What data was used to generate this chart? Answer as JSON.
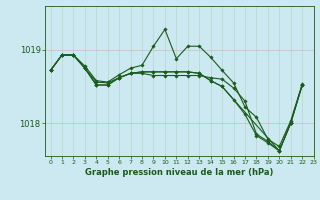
{
  "title": "Graphe pression niveau de la mer (hPa)",
  "bg_color": "#cce8f0",
  "grid_color_v": "#b8cccc",
  "grid_color_h": "#ccaaaa",
  "line_color": "#1a5c1a",
  "xlim": [
    -0.5,
    23
  ],
  "ylim": [
    1017.55,
    1019.6
  ],
  "yticks": [
    1018,
    1019
  ],
  "xticks": [
    0,
    1,
    2,
    3,
    4,
    5,
    6,
    7,
    8,
    9,
    10,
    11,
    12,
    13,
    14,
    15,
    16,
    17,
    18,
    19,
    20,
    21,
    22,
    23
  ],
  "s1_x": [
    0,
    1,
    2,
    3,
    4,
    5,
    6,
    7,
    8,
    9,
    10,
    11,
    12,
    13,
    14,
    15,
    16,
    17,
    18,
    19,
    20,
    21,
    22
  ],
  "s1_y": [
    1018.72,
    1018.93,
    1018.93,
    1018.78,
    1018.58,
    1018.56,
    1018.66,
    1018.75,
    1018.79,
    1019.05,
    1019.28,
    1018.88,
    1019.05,
    1019.05,
    1018.9,
    1018.72,
    1018.55,
    1018.22,
    1018.08,
    1017.78,
    1017.68,
    1018.03,
    1018.53
  ],
  "s2_x": [
    0,
    1,
    2,
    3,
    4,
    5,
    6,
    7,
    8,
    9,
    10,
    11,
    12,
    13,
    14,
    15,
    16,
    17,
    18,
    19,
    20,
    21,
    22
  ],
  "s2_y": [
    1018.72,
    1018.93,
    1018.93,
    1018.75,
    1018.56,
    1018.55,
    1018.62,
    1018.68,
    1018.68,
    1018.65,
    1018.65,
    1018.65,
    1018.65,
    1018.65,
    1018.62,
    1018.6,
    1018.48,
    1018.3,
    1017.85,
    1017.75,
    1017.62,
    1018.0,
    1018.52
  ],
  "s3_x": [
    0,
    1,
    2,
    3,
    4,
    5,
    6,
    7,
    8,
    9,
    10,
    11,
    12,
    13,
    14,
    15,
    16,
    17,
    18,
    19,
    20,
    21,
    22
  ],
  "s3_y": [
    1018.72,
    1018.93,
    1018.93,
    1018.75,
    1018.52,
    1018.52,
    1018.62,
    1018.68,
    1018.7,
    1018.7,
    1018.7,
    1018.7,
    1018.7,
    1018.68,
    1018.58,
    1018.5,
    1018.32,
    1018.12,
    1017.83,
    1017.73,
    1017.62,
    1018.0,
    1018.52
  ],
  "s4_x": [
    0,
    1,
    2,
    3,
    4,
    5,
    6,
    7,
    8,
    9,
    10,
    11,
    12,
    13,
    14,
    15,
    20,
    21,
    22
  ],
  "s4_y": [
    1018.72,
    1018.93,
    1018.93,
    1018.75,
    1018.52,
    1018.52,
    1018.62,
    1018.68,
    1018.7,
    1018.7,
    1018.7,
    1018.7,
    1018.7,
    1018.68,
    1018.58,
    1018.5,
    1017.62,
    1018.0,
    1018.52
  ]
}
